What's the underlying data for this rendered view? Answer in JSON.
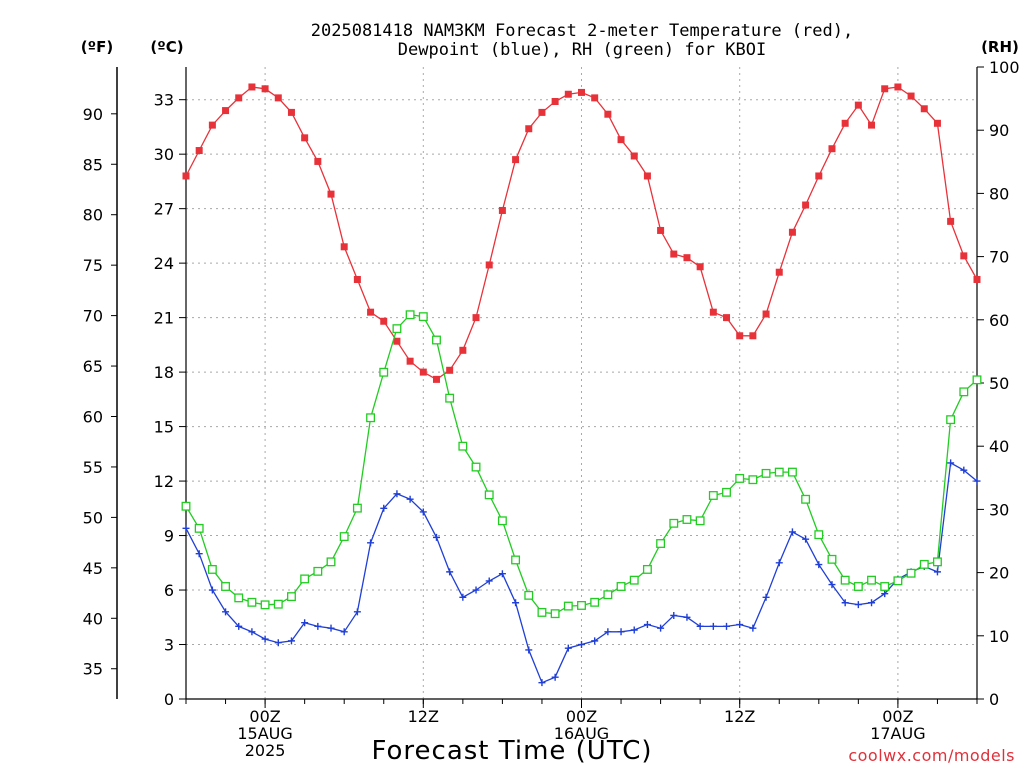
{
  "colors": {
    "temp": "#e8323a",
    "dew": "#1f3fd6",
    "rh": "#22cc22",
    "credit": "#e0303a"
  },
  "title_line1": "2025081418 NAM3KM Forecast 2-meter Temperature (red),",
  "title_line2": "Dewpoint (blue), RH (green) for KBOI",
  "units": {
    "f": "(ºF)",
    "c": "(ºC)",
    "rh": "(RH)"
  },
  "xlabel": "Forecast Time (UTC)",
  "credit": "coolwx.com/models",
  "chart_data": {
    "type": "line",
    "title": "2025081418 NAM3KM Forecast 2-meter Temperature (red), Dewpoint (blue), RH (green) for KBOI",
    "xlabel": "Forecast Time (UTC)",
    "x_unit": "hours from 2025-08-14 18Z",
    "x": [
      0,
      1,
      2,
      3,
      4,
      5,
      6,
      7,
      8,
      9,
      10,
      11,
      12,
      13,
      14,
      15,
      16,
      17,
      18,
      19,
      20,
      21,
      22,
      23,
      24,
      25,
      26,
      27,
      28,
      29,
      30,
      31,
      32,
      33,
      34,
      35,
      36,
      37,
      38,
      39,
      40,
      41,
      42,
      43,
      44,
      45,
      46,
      47,
      48,
      49,
      50,
      51,
      52,
      53,
      54,
      55,
      56,
      57,
      58,
      59,
      60
    ],
    "xlim": [
      0,
      60
    ],
    "x_ticks": [
      {
        "x": 6,
        "lines": [
          "00Z",
          "15AUG",
          "2025"
        ]
      },
      {
        "x": 18,
        "lines": [
          "12Z"
        ]
      },
      {
        "x": 30,
        "lines": [
          "00Z",
          "16AUG"
        ]
      },
      {
        "x": 42,
        "lines": [
          "12Z"
        ]
      },
      {
        "x": 54,
        "lines": [
          "00Z",
          "17AUG"
        ]
      }
    ],
    "y_left_c": {
      "label": "(ºC)",
      "ylim": [
        0,
        34.8
      ],
      "ticks": [
        0,
        3,
        6,
        9,
        12,
        15,
        18,
        21,
        24,
        27,
        30,
        33
      ]
    },
    "y_left_f": {
      "label": "(ºF)",
      "ticks": [
        35,
        40,
        45,
        50,
        55,
        60,
        65,
        70,
        75,
        80,
        85,
        90
      ]
    },
    "y_right_rh": {
      "label": "(RH)",
      "ylim": [
        0,
        100
      ],
      "ticks": [
        0,
        10,
        20,
        30,
        40,
        50,
        60,
        70,
        80,
        90,
        100
      ]
    },
    "grid": true,
    "series": [
      {
        "name": "Temperature (red)",
        "axis": "c",
        "marker": "filled-square",
        "color": "#e8323a",
        "values": [
          28.8,
          30.2,
          31.6,
          32.4,
          33.1,
          33.7,
          33.6,
          33.1,
          32.3,
          30.9,
          29.6,
          27.8,
          24.9,
          23.1,
          21.3,
          20.8,
          19.7,
          18.6,
          18.0,
          17.6,
          18.1,
          19.2,
          21.0,
          23.9,
          26.9,
          29.7,
          31.4,
          32.3,
          32.9,
          33.3,
          33.4,
          33.1,
          32.2,
          30.8,
          29.9,
          28.8,
          25.8,
          24.5,
          24.3,
          23.8,
          21.3,
          21.0,
          20.0,
          20.0,
          21.2,
          23.5,
          25.7,
          27.2,
          28.8,
          30.3,
          31.7,
          32.7,
          31.6,
          33.6,
          33.7,
          33.2,
          32.5,
          31.7,
          26.3,
          24.4,
          23.1
        ]
      },
      {
        "name": "Dewpoint (blue)",
        "axis": "c",
        "marker": "plus",
        "color": "#1f3fd6",
        "values": [
          9.4,
          8.0,
          6.0,
          4.8,
          4.0,
          3.7,
          3.3,
          3.1,
          3.2,
          4.2,
          4.0,
          3.9,
          3.7,
          4.8,
          8.6,
          10.5,
          11.3,
          11.0,
          10.3,
          8.9,
          7.0,
          5.6,
          6.0,
          6.5,
          6.9,
          5.3,
          2.7,
          0.9,
          1.2,
          2.8,
          3.0,
          3.2,
          3.7,
          3.7,
          3.8,
          4.1,
          3.9,
          4.6,
          4.5,
          4.0,
          4.0,
          4.0,
          4.1,
          3.9,
          5.6,
          7.5,
          9.2,
          8.8,
          7.4,
          6.3,
          5.3,
          5.2,
          5.3,
          5.8,
          6.6,
          7.0,
          7.3,
          7.0,
          13.0,
          12.6,
          12.0
        ]
      },
      {
        "name": "RH (green)",
        "axis": "rh",
        "marker": "open-square",
        "color": "#22cc22",
        "values": [
          30.5,
          27.0,
          20.5,
          17.8,
          16.0,
          15.3,
          14.9,
          15.0,
          16.2,
          19.0,
          20.2,
          21.7,
          25.7,
          30.2,
          44.5,
          51.7,
          58.6,
          60.8,
          60.5,
          56.8,
          47.6,
          40.0,
          36.7,
          32.3,
          28.2,
          22.0,
          16.4,
          13.7,
          13.5,
          14.7,
          14.8,
          15.3,
          16.5,
          17.8,
          18.8,
          20.5,
          24.6,
          27.8,
          28.4,
          28.2,
          32.2,
          32.7,
          34.9,
          34.7,
          35.7,
          35.9,
          35.9,
          31.6,
          26.0,
          22.1,
          18.8,
          17.8,
          18.8,
          17.8,
          18.7,
          19.9,
          21.3,
          21.7,
          44.2,
          48.6,
          50.5
        ]
      }
    ]
  }
}
